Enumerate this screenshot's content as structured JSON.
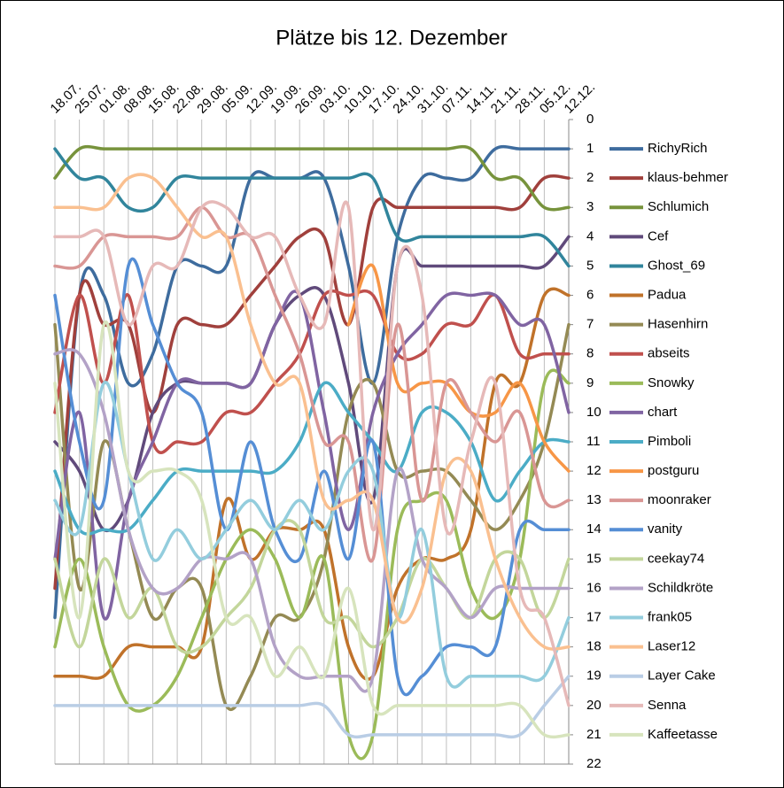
{
  "chart_data": {
    "type": "line",
    "title": "Plätze bis 12. Dezember",
    "categories": [
      "18.07.",
      "25.07.",
      "01.08.",
      "08.08.",
      "15.08.",
      "22.08.",
      "29.08.",
      "05.09.",
      "12.09.",
      "19.09.",
      "26.09.",
      "03.10.",
      "10.10.",
      "17.10.",
      "24.10.",
      "31.10.",
      "07.11.",
      "14.11.",
      "21.11.",
      "28.11.",
      "05.12.",
      "12.12."
    ],
    "ylim": [
      0,
      22
    ],
    "y_inverted": true,
    "y_axis_side": "right",
    "yticks": [
      0,
      1,
      2,
      3,
      4,
      5,
      6,
      7,
      8,
      9,
      10,
      11,
      12,
      13,
      14,
      15,
      16,
      17,
      18,
      19,
      20,
      21,
      22
    ],
    "grid": "vertical",
    "smooth": true,
    "legend": "right",
    "series": [
      {
        "name": "RichyRich",
        "color": "#3e6c9e",
        "values": [
          17,
          6,
          6,
          9,
          8,
          5,
          5,
          5,
          2,
          2,
          2,
          2,
          5,
          9,
          4,
          2,
          2,
          2,
          1,
          1,
          1,
          1
        ]
      },
      {
        "name": "klaus-behmer",
        "color": "#a0403c",
        "values": [
          16,
          6,
          7,
          7,
          10,
          7,
          7,
          7,
          6,
          5,
          4,
          4,
          7,
          3,
          3,
          3,
          3,
          3,
          3,
          3,
          2,
          2
        ]
      },
      {
        "name": "Schlumich",
        "color": "#77933c",
        "values": [
          2,
          1,
          1,
          1,
          1,
          1,
          1,
          1,
          1,
          1,
          1,
          1,
          1,
          1,
          1,
          1,
          1,
          1,
          2,
          2,
          3,
          3
        ]
      },
      {
        "name": "Cef",
        "color": "#604a7b",
        "values": [
          11,
          12,
          14,
          13,
          10,
          9,
          9,
          9,
          9,
          7,
          6,
          6,
          9,
          13,
          5,
          5,
          5,
          5,
          5,
          5,
          5,
          4
        ]
      },
      {
        "name": "Ghost_69",
        "color": "#31859c",
        "values": [
          1,
          2,
          2,
          3,
          3,
          2,
          2,
          2,
          2,
          2,
          2,
          2,
          2,
          2,
          4,
          4,
          4,
          4,
          4,
          4,
          4,
          5
        ]
      },
      {
        "name": "Padua",
        "color": "#c0722a",
        "values": [
          19,
          19,
          19,
          18,
          18,
          18,
          18,
          13,
          15,
          14,
          14,
          14,
          18,
          19,
          16,
          15,
          15,
          14,
          9,
          9,
          6,
          6
        ]
      },
      {
        "name": "Hasenhirn",
        "color": "#948a54",
        "values": [
          7,
          16,
          11,
          14,
          17,
          16,
          16,
          20,
          19,
          17,
          17,
          15,
          10,
          9,
          12,
          12,
          12,
          13,
          14,
          13,
          11,
          7
        ]
      },
      {
        "name": "abseits",
        "color": "#c0504d",
        "values": [
          10,
          6,
          9,
          6,
          11,
          11,
          11,
          10,
          10,
          9,
          8,
          6,
          6,
          6,
          8,
          8,
          7,
          7,
          6,
          8,
          8,
          8
        ]
      },
      {
        "name": "Snowky",
        "color": "#9bbb59",
        "values": [
          18,
          15,
          18,
          20,
          20,
          19,
          17,
          15,
          14,
          15,
          17,
          15,
          21,
          21,
          14,
          13,
          13,
          16,
          17,
          15,
          9,
          9
        ]
      },
      {
        "name": "chart",
        "color": "#8064a2",
        "values": [
          15,
          10,
          17,
          13,
          11,
          9,
          9,
          9,
          9,
          7,
          6,
          10,
          14,
          10,
          8,
          7,
          6,
          6,
          6,
          7,
          7,
          10
        ]
      },
      {
        "name": "Pimboli",
        "color": "#4bacc6",
        "values": [
          12,
          14,
          14,
          14,
          13,
          12,
          12,
          12,
          12,
          12,
          11,
          9,
          10,
          11,
          12,
          10,
          10,
          11,
          13,
          12,
          11,
          11
        ]
      },
      {
        "name": "postguru",
        "color": "#f79646",
        "values": [
          null,
          null,
          null,
          null,
          null,
          null,
          null,
          null,
          null,
          null,
          null,
          null,
          7,
          5,
          9,
          9,
          9,
          10,
          10,
          9,
          11,
          12
        ]
      },
      {
        "name": "moonraker",
        "color": "#d99694",
        "values": [
          5,
          5,
          4,
          4,
          4,
          4,
          3,
          4,
          4,
          6,
          8,
          11,
          11,
          15,
          7,
          13,
          9,
          10,
          11,
          10,
          13,
          13
        ]
      },
      {
        "name": "vanity",
        "color": "#558ed5",
        "values": [
          6,
          11,
          13,
          5,
          7,
          9,
          10,
          14,
          11,
          14,
          15,
          12,
          15,
          11,
          19,
          19,
          18,
          18,
          18,
          14,
          14,
          14
        ]
      },
      {
        "name": "ceekay74",
        "color": "#c3d69b",
        "values": [
          15,
          18,
          15,
          17,
          16,
          18,
          18,
          17,
          16,
          14,
          14,
          17,
          17,
          18,
          17,
          15,
          16,
          17,
          15,
          15,
          17,
          15
        ]
      },
      {
        "name": "Schildkröte",
        "color": "#b3a2c7",
        "values": [
          8,
          8,
          10,
          14,
          16,
          16,
          15,
          15,
          15,
          18,
          19,
          19,
          19,
          19,
          12,
          15,
          16,
          17,
          16,
          16,
          16,
          16
        ]
      },
      {
        "name": "frank05",
        "color": "#93cddd",
        "values": [
          13,
          14,
          9,
          12,
          15,
          14,
          15,
          14,
          13,
          14,
          13,
          14,
          12,
          12,
          17,
          14,
          19,
          19,
          19,
          19,
          19,
          17
        ]
      },
      {
        "name": "Laser12",
        "color": "#fac090",
        "values": [
          3,
          3,
          3,
          2,
          2,
          3,
          4,
          4,
          7,
          9,
          9,
          13,
          13,
          13,
          17,
          16,
          12,
          12,
          15,
          17,
          18,
          18
        ]
      },
      {
        "name": "Layer Cake",
        "color": "#b9cde5",
        "values": [
          20,
          20,
          20,
          20,
          20,
          20,
          20,
          20,
          20,
          20,
          20,
          20,
          21,
          21,
          21,
          21,
          21,
          21,
          21,
          21,
          20,
          19
        ]
      },
      {
        "name": "Senna",
        "color": "#e6b9b8",
        "values": [
          4,
          4,
          4,
          7,
          5,
          5,
          3,
          3,
          4,
          4,
          6,
          7,
          3,
          14,
          5,
          6,
          14,
          11,
          9,
          16,
          17,
          20
        ]
      },
      {
        "name": "Kaffeetasse",
        "color": "#d7e4bd",
        "values": [
          9,
          17,
          7,
          12,
          12,
          12,
          13,
          17,
          17,
          19,
          18,
          19,
          16,
          20,
          20,
          20,
          20,
          20,
          20,
          20,
          21,
          21
        ]
      }
    ]
  }
}
